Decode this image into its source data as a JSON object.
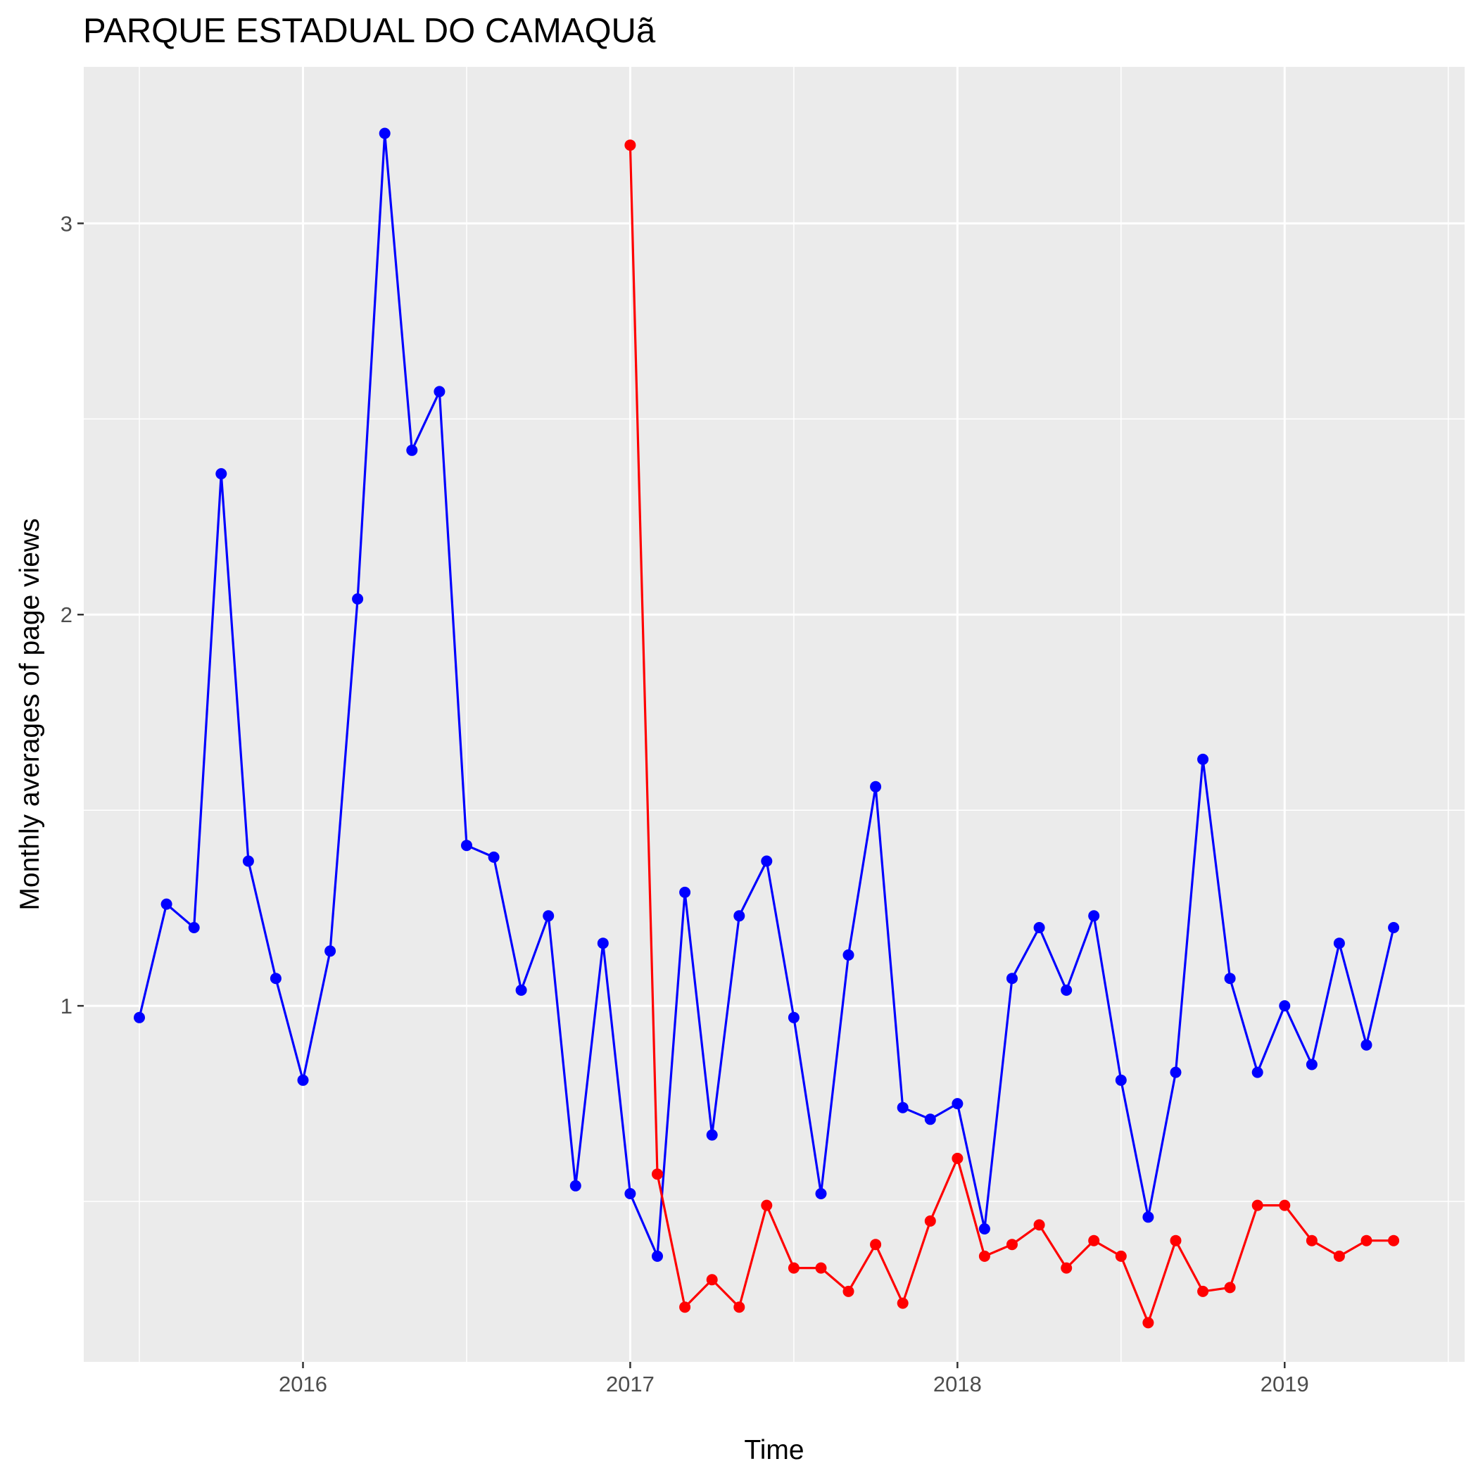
{
  "chart_data": {
    "type": "line",
    "title": "PARQUE ESTADUAL DO CAMAQUã",
    "xlabel": "Time",
    "ylabel": "Monthly averages of page views",
    "x_ticks": [
      2016,
      2017,
      2018,
      2019
    ],
    "x_tick_labels": [
      "2016",
      "2017",
      "2018",
      "2019"
    ],
    "y_ticks": [
      1,
      2,
      3
    ],
    "y_tick_labels": [
      "1",
      "2",
      "3"
    ],
    "xlim": [
      2015.33,
      2019.55
    ],
    "ylim": [
      0.09,
      3.4
    ],
    "grid": true,
    "legend": "none",
    "series": [
      {
        "color": "#0000ff",
        "x": [
          2015.5,
          2015.583,
          2015.667,
          2015.75,
          2015.833,
          2015.917,
          2016.0,
          2016.083,
          2016.167,
          2016.25,
          2016.333,
          2016.417,
          2016.5,
          2016.583,
          2016.667,
          2016.75,
          2016.833,
          2016.917,
          2017.0,
          2017.083,
          2017.167,
          2017.25,
          2017.333,
          2017.417,
          2017.5,
          2017.583,
          2017.667,
          2017.75,
          2017.833,
          2017.917,
          2018.0,
          2018.083,
          2018.167,
          2018.25,
          2018.333,
          2018.417,
          2018.5,
          2018.583,
          2018.667,
          2018.75,
          2018.833,
          2018.917,
          2019.0,
          2019.083,
          2019.167,
          2019.25,
          2019.333
        ],
        "values": [
          0.97,
          1.26,
          1.2,
          2.36,
          1.37,
          1.07,
          0.81,
          1.14,
          2.04,
          3.23,
          2.42,
          2.57,
          1.41,
          1.38,
          1.04,
          1.23,
          0.54,
          1.16,
          0.52,
          0.36,
          1.29,
          0.67,
          1.23,
          1.37,
          0.97,
          0.52,
          1.13,
          1.56,
          0.74,
          0.71,
          0.75,
          0.43,
          1.07,
          1.2,
          1.04,
          1.23,
          0.81,
          0.46,
          0.83,
          1.63,
          1.07,
          0.83,
          1.0,
          0.85,
          1.16,
          0.9,
          1.2
        ]
      },
      {
        "color": "#ff0000",
        "x": [
          2017.0,
          2017.083,
          2017.167,
          2017.25,
          2017.333,
          2017.417,
          2017.5,
          2017.583,
          2017.667,
          2017.75,
          2017.833,
          2017.917,
          2018.0,
          2018.083,
          2018.167,
          2018.25,
          2018.333,
          2018.417,
          2018.5,
          2018.583,
          2018.667,
          2018.75,
          2018.833,
          2018.917,
          2019.0,
          2019.083,
          2019.167,
          2019.25,
          2019.333
        ],
        "values": [
          3.2,
          0.57,
          0.23,
          0.3,
          0.23,
          0.49,
          0.33,
          0.33,
          0.27,
          0.39,
          0.24,
          0.45,
          0.61,
          0.36,
          0.39,
          0.44,
          0.33,
          0.4,
          0.36,
          0.19,
          0.4,
          0.27,
          0.28,
          0.49,
          0.49,
          0.4,
          0.36,
          0.4,
          0.4
        ]
      }
    ]
  }
}
